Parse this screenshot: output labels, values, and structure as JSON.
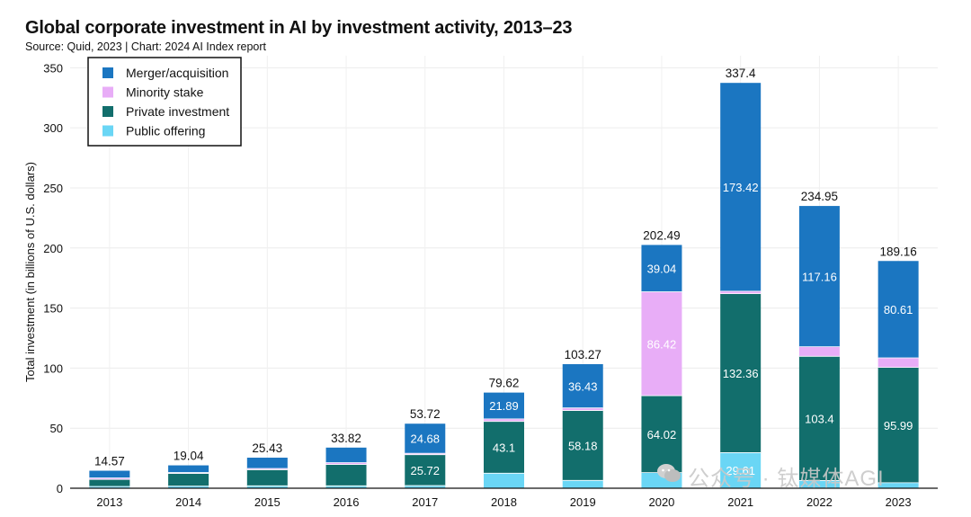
{
  "header": {
    "title": "Global corporate investment in AI by investment activity, 2013–23",
    "subtitle": "Source: Quid, 2023 | Chart: 2024 AI Index report"
  },
  "watermark": {
    "text": "公众号 · 钛媒体AGI"
  },
  "chart_data": {
    "type": "bar",
    "stacked": true,
    "title": "Global corporate investment in AI by investment activity, 2013–23",
    "ylabel": "Total investment (in billions of U.S. dollars)",
    "xlabel": "",
    "ylim": [
      0,
      360
    ],
    "yticks": [
      0,
      50,
      100,
      150,
      200,
      250,
      300,
      350
    ],
    "grid": true,
    "legend_position": "top-left",
    "categories": [
      "2013",
      "2014",
      "2015",
      "2016",
      "2017",
      "2018",
      "2019",
      "2020",
      "2021",
      "2022",
      "2023"
    ],
    "totals": [
      14.57,
      19.04,
      25.43,
      33.82,
      53.72,
      79.62,
      103.27,
      202.49,
      337.4,
      234.95,
      189.16
    ],
    "series": [
      {
        "name": "Public offering",
        "color": "#6ad6f5",
        "values": [
          1.5,
          1.8,
          2.0,
          2.0,
          2.2,
          12.5,
          6.5,
          13.03,
          29.61,
          6.39,
          4.56
        ]
      },
      {
        "name": "Private investment",
        "color": "#126e6c",
        "values": [
          5.8,
          10.5,
          13.4,
          17.8,
          25.72,
          43.1,
          58.18,
          64.02,
          132.36,
          103.4,
          95.99
        ],
        "labels": [
          "",
          "",
          "",
          "",
          "25.72",
          "43.1",
          "58.18",
          "64.02",
          "132.36",
          "103.4",
          "95.99"
        ]
      },
      {
        "name": "Minority stake",
        "color": "#e8adf7",
        "values": [
          1.27,
          0.74,
          1.03,
          1.52,
          1.12,
          2.13,
          2.16,
          86.42,
          2.01,
          8.0,
          8.0
        ],
        "labels": [
          "",
          "",
          "",
          "",
          "",
          "",
          "",
          "86.42",
          "",
          "",
          ""
        ]
      },
      {
        "name": "Merger/acquisition",
        "color": "#1b76c1",
        "values": [
          6.0,
          6.0,
          9.0,
          12.5,
          24.68,
          21.89,
          36.43,
          39.04,
          173.42,
          117.16,
          80.61
        ],
        "labels": [
          "",
          "",
          "",
          "",
          "24.68",
          "21.89",
          "36.43",
          "39.04",
          "173.42",
          "117.16",
          "80.61"
        ]
      }
    ],
    "legend_order": [
      "Merger/acquisition",
      "Minority stake",
      "Private investment",
      "Public offering"
    ],
    "data_labels_visible": {
      "2021": {
        "Public offering": "29.61"
      }
    }
  }
}
